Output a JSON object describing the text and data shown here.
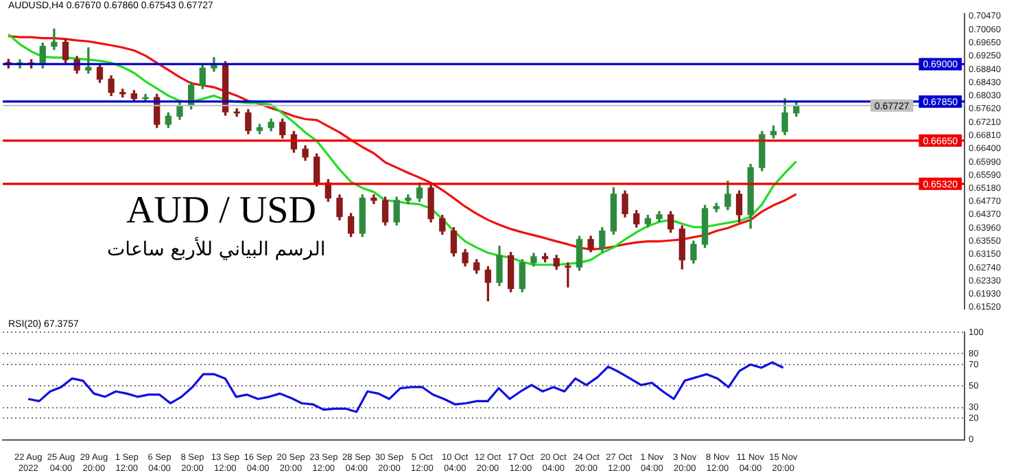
{
  "chart_data": [
    {
      "type": "candlestick",
      "title": "AUDUSD,H4  0.67670 0.67860 0.67543 0.67727",
      "annotations": [
        "AUD / USD",
        "الرسم البياني للأربع ساعات"
      ],
      "categories": [
        null,
        null,
        null,
        null,
        null,
        null,
        null,
        null,
        null,
        null,
        null,
        null,
        null,
        null,
        null,
        null,
        null,
        null,
        null,
        null,
        null,
        null,
        null,
        null,
        null,
        null,
        null,
        null,
        null,
        null,
        null,
        null,
        null,
        null,
        null,
        null,
        null,
        null,
        null,
        null,
        null,
        null,
        null,
        null,
        null,
        null,
        null,
        null,
        null,
        null,
        null,
        null,
        null,
        null,
        null,
        null,
        null,
        null,
        null,
        null,
        null,
        null,
        null,
        null,
        null,
        null,
        null,
        null,
        null,
        null
      ],
      "ohlc": [
        [
          0.6905,
          0.6915,
          0.6888,
          0.6898
        ],
        [
          0.6898,
          0.6914,
          0.6888,
          0.6904
        ],
        [
          0.6904,
          0.6914,
          0.6888,
          0.6898
        ],
        [
          0.6898,
          0.6965,
          0.6888,
          0.6955
        ],
        [
          0.6955,
          0.7008,
          0.6945,
          0.6967
        ],
        [
          0.6967,
          0.6977,
          0.6904,
          0.6914
        ],
        [
          0.6914,
          0.6924,
          0.6872,
          0.6882
        ],
        [
          0.6882,
          0.695,
          0.6872,
          0.689
        ],
        [
          0.689,
          0.69,
          0.6844,
          0.6854
        ],
        [
          0.6854,
          0.6864,
          0.6803,
          0.6813
        ],
        [
          0.6813,
          0.6823,
          0.6799,
          0.6809
        ],
        [
          0.6809,
          0.6819,
          0.6784,
          0.6794
        ],
        [
          0.6794,
          0.6807,
          0.6784,
          0.6797
        ],
        [
          0.6797,
          0.6807,
          0.6705,
          0.6715
        ],
        [
          0.6715,
          0.675,
          0.6705,
          0.674
        ],
        [
          0.674,
          0.6782,
          0.673,
          0.6772
        ],
        [
          0.6772,
          0.6845,
          0.6762,
          0.6835
        ],
        [
          0.6835,
          0.6898,
          0.6825,
          0.6888
        ],
        [
          0.6888,
          0.692,
          0.6878,
          0.6898
        ],
        [
          0.6898,
          0.6908,
          0.6743,
          0.6753
        ],
        [
          0.6753,
          0.6763,
          0.674,
          0.675
        ],
        [
          0.675,
          0.676,
          0.6686,
          0.6696
        ],
        [
          0.6696,
          0.6715,
          0.6686,
          0.6705
        ],
        [
          0.6705,
          0.6731,
          0.6695,
          0.6721
        ],
        [
          0.6721,
          0.6731,
          0.6673,
          0.6683
        ],
        [
          0.6683,
          0.6693,
          0.6629,
          0.6639
        ],
        [
          0.6639,
          0.6649,
          0.6604,
          0.6614
        ],
        [
          0.6614,
          0.6624,
          0.6525,
          0.6535
        ],
        [
          0.6535,
          0.6545,
          0.6478,
          0.6488
        ],
        [
          0.6488,
          0.6498,
          0.6421,
          0.6431
        ],
        [
          0.6431,
          0.6441,
          0.637,
          0.638
        ],
        [
          0.638,
          0.6498,
          0.637,
          0.6488
        ],
        [
          0.6488,
          0.6498,
          0.6471,
          0.6481
        ],
        [
          0.6481,
          0.6491,
          0.6405,
          0.6415
        ],
        [
          0.6415,
          0.6491,
          0.6405,
          0.6481
        ],
        [
          0.6481,
          0.6498,
          0.6471,
          0.6488
        ],
        [
          0.6488,
          0.6535,
          0.6478,
          0.6519
        ],
        [
          0.6519,
          0.6529,
          0.6415,
          0.6425
        ],
        [
          0.6425,
          0.6435,
          0.6377,
          0.6387
        ],
        [
          0.6387,
          0.6397,
          0.631,
          0.632
        ],
        [
          0.632,
          0.633,
          0.6279,
          0.6289
        ],
        [
          0.6289,
          0.6299,
          0.6257,
          0.6267
        ],
        [
          0.6267,
          0.6277,
          0.6172,
          0.6229
        ],
        [
          0.6229,
          0.634,
          0.6219,
          0.6311
        ],
        [
          0.6311,
          0.6321,
          0.62,
          0.621
        ],
        [
          0.621,
          0.6299,
          0.62,
          0.6289
        ],
        [
          0.6289,
          0.6318,
          0.6279,
          0.6308
        ],
        [
          0.6308,
          0.6318,
          0.6292,
          0.6302
        ],
        [
          0.6302,
          0.6312,
          0.6269,
          0.6279
        ],
        [
          0.6279,
          0.6289,
          0.6215,
          0.6276
        ],
        [
          0.6276,
          0.6371,
          0.6266,
          0.6361
        ],
        [
          0.6361,
          0.6371,
          0.6323,
          0.6333
        ],
        [
          0.6333,
          0.6397,
          0.6323,
          0.6387
        ],
        [
          0.6387,
          0.652,
          0.6377,
          0.65
        ],
        [
          0.65,
          0.651,
          0.643,
          0.644
        ],
        [
          0.644,
          0.645,
          0.6399,
          0.6409
        ],
        [
          0.6409,
          0.6435,
          0.6399,
          0.6425
        ],
        [
          0.6425,
          0.6447,
          0.6415,
          0.6437
        ],
        [
          0.6437,
          0.6447,
          0.6383,
          0.6393
        ],
        [
          0.6393,
          0.6403,
          0.627,
          0.6298
        ],
        [
          0.6298,
          0.6356,
          0.6288,
          0.6346
        ],
        [
          0.6346,
          0.6466,
          0.6336,
          0.6456
        ],
        [
          0.6456,
          0.6472,
          0.6446,
          0.6462
        ],
        [
          0.6462,
          0.654,
          0.6452,
          0.65
        ],
        [
          0.65,
          0.651,
          0.6415,
          0.6437
        ],
        [
          0.6437,
          0.6592,
          0.6395,
          0.6582
        ],
        [
          0.6582,
          0.6693,
          0.6572,
          0.6683
        ],
        [
          0.6683,
          0.671,
          0.6673,
          0.6693
        ],
        [
          0.6693,
          0.6794,
          0.6683,
          0.675
        ],
        [
          0.675,
          0.6786,
          0.674,
          0.67727
        ]
      ],
      "colors": [
        "#8b1a1a",
        "#2e8b3e",
        "#8b1a1a",
        "#2e8b3e",
        "#2e8b3e",
        "#8b1a1a",
        "#8b1a1a",
        "#2e8b3e",
        "#8b1a1a",
        "#8b1a1a",
        "#8b1a1a",
        "#8b1a1a",
        "#2e8b3e",
        "#8b1a1a",
        "#2e8b3e",
        "#2e8b3e",
        "#2e8b3e",
        "#2e8b3e",
        "#2e8b3e",
        "#8b1a1a",
        "#8b1a1a",
        "#8b1a1a",
        "#2e8b3e",
        "#2e8b3e",
        "#8b1a1a",
        "#8b1a1a",
        "#8b1a1a",
        "#8b1a1a",
        "#8b1a1a",
        "#8b1a1a",
        "#8b1a1a",
        "#2e8b3e",
        "#8b1a1a",
        "#8b1a1a",
        "#2e8b3e",
        "#2e8b3e",
        "#2e8b3e",
        "#8b1a1a",
        "#8b1a1a",
        "#8b1a1a",
        "#8b1a1a",
        "#8b1a1a",
        "#8b1a1a",
        "#2e8b3e",
        "#8b1a1a",
        "#2e8b3e",
        "#2e8b3e",
        "#8b1a1a",
        "#8b1a1a",
        "#8b1a1a",
        "#2e8b3e",
        "#8b1a1a",
        "#2e8b3e",
        "#2e8b3e",
        "#8b1a1a",
        "#8b1a1a",
        "#2e8b3e",
        "#2e8b3e",
        "#8b1a1a",
        "#8b1a1a",
        "#2e8b3e",
        "#2e8b3e",
        "#2e8b3e",
        "#2e8b3e",
        "#8b1a1a",
        "#2e8b3e",
        "#2e8b3e",
        "#2e8b3e",
        "#2e8b3e",
        "#2e8b3e"
      ],
      "series": [
        {
          "type": "line",
          "color": "#22dd22",
          "values": [
            0.6992,
            0.6961,
            0.6939,
            0.6923,
            0.692,
            0.692,
            0.6917,
            0.6914,
            0.691,
            0.6904,
            0.6891,
            0.6873,
            0.6847,
            0.6825,
            0.6803,
            0.6787,
            0.6784,
            0.6793,
            0.6803,
            0.679,
            0.6784,
            0.6781,
            0.6781,
            0.6775,
            0.6749,
            0.6721,
            0.669,
            0.6664,
            0.662,
            0.6576,
            0.6538,
            0.6519,
            0.6507,
            0.6481,
            0.6478,
            0.6472,
            0.6469,
            0.6456,
            0.6424,
            0.6387,
            0.6355,
            0.6336,
            0.632,
            0.6311,
            0.6305,
            0.6292,
            0.6283,
            0.6283,
            0.6283,
            0.6286,
            0.6289,
            0.6298,
            0.632,
            0.6336,
            0.6361,
            0.6383,
            0.6402,
            0.6415,
            0.6421,
            0.6409,
            0.6399,
            0.6399,
            0.6406,
            0.6412,
            0.6418,
            0.6431,
            0.6469,
            0.6526,
            0.6565,
            0.6601
          ]
        },
        {
          "type": "line",
          "color": "#ee1111",
          "values": [
            0.6986,
            0.6983,
            0.6983,
            0.698,
            0.698,
            0.6977,
            0.6973,
            0.697,
            0.6964,
            0.6958,
            0.6951,
            0.6942,
            0.6926,
            0.6904,
            0.6882,
            0.686,
            0.6841,
            0.6835,
            0.6829,
            0.6816,
            0.6803,
            0.6787,
            0.6778,
            0.6765,
            0.6753,
            0.674,
            0.6731,
            0.6728,
            0.6709,
            0.669,
            0.6667,
            0.6645,
            0.6626,
            0.6598,
            0.6582,
            0.6566,
            0.6551,
            0.6535,
            0.6513,
            0.6488,
            0.6462,
            0.644,
            0.6421,
            0.6406,
            0.6393,
            0.6383,
            0.6374,
            0.6365,
            0.6355,
            0.6346,
            0.6336,
            0.633,
            0.6333,
            0.6339,
            0.6346,
            0.6352,
            0.6355,
            0.6355,
            0.6358,
            0.6361,
            0.6368,
            0.6374,
            0.6387,
            0.6396,
            0.6409,
            0.6421,
            0.6447,
            0.6466,
            0.6481,
            0.65
          ]
        }
      ],
      "ylim": [
        0.6147,
        0.7055
      ],
      "yticks": [
        {
          "value": 0.7047,
          "label": "0.70470"
        },
        {
          "value": 0.7006,
          "label": "0.70060"
        },
        {
          "value": 0.6965,
          "label": "0.69650"
        },
        {
          "value": 0.6925,
          "label": "0.69250"
        },
        {
          "value": 0.6884,
          "label": "0.68840"
        },
        {
          "value": 0.6843,
          "label": "0.68430"
        },
        {
          "value": 0.6803,
          "label": "0.68030"
        },
        {
          "value": 0.6762,
          "label": "0.67620"
        },
        {
          "value": 0.6721,
          "label": "0.67210"
        },
        {
          "value": 0.6681,
          "label": "0.66810"
        },
        {
          "value": 0.664,
          "label": "0.66400"
        },
        {
          "value": 0.6599,
          "label": "0.65990"
        },
        {
          "value": 0.6559,
          "label": "0.65590"
        },
        {
          "value": 0.6518,
          "label": "0.65180"
        },
        {
          "value": 0.6477,
          "label": "0.64770"
        },
        {
          "value": 0.6437,
          "label": "0.64370"
        },
        {
          "value": 0.6396,
          "label": "0.63960"
        },
        {
          "value": 0.6355,
          "label": "0.63550"
        },
        {
          "value": 0.6315,
          "label": "0.63150"
        },
        {
          "value": 0.6274,
          "label": "0.62740"
        },
        {
          "value": 0.6233,
          "label": "0.62330"
        },
        {
          "value": 0.6193,
          "label": "0.61930"
        },
        {
          "value": 0.6152,
          "label": "0.61520"
        }
      ],
      "ref_lines": [
        {
          "axis": "y",
          "value": 0.69,
          "label": "0.69000",
          "color": "#0000cc"
        },
        {
          "axis": "y",
          "value": 0.6785,
          "label": "0.67850",
          "color": "#0000cc"
        },
        {
          "axis": "y",
          "value": 0.67727,
          "label": "0.67727",
          "color": "#c0c0c0"
        },
        {
          "axis": "y",
          "value": 0.6665,
          "label": "0.66650",
          "color": "#ee0000"
        },
        {
          "axis": "y",
          "value": 0.6532,
          "label": "0.65320",
          "color": "#ee0000"
        }
      ],
      "tick_labels": "y"
    },
    {
      "type": "line",
      "title": "RSI(20) 67.3757",
      "categories": [
        "22 Aug 2022",
        null,
        null,
        "25 Aug 04:00",
        null,
        null,
        "29 Aug 20:00",
        null,
        null,
        "1 Sep 12:00",
        null,
        null,
        "6 Sep 04:00",
        null,
        null,
        "8 Sep 20:00",
        null,
        null,
        "13 Sep 12:00",
        null,
        null,
        "16 Sep 04:00",
        null,
        null,
        "20 Sep 20:00",
        null,
        null,
        "23 Sep 12:00",
        null,
        null,
        "28 Sep 04:00",
        null,
        null,
        "30 Sep 20:00",
        null,
        null,
        "5 Oct 12:00",
        null,
        null,
        "10 Oct 04:00",
        null,
        null,
        "12 Oct 20:00",
        null,
        null,
        "17 Oct 12:00",
        null,
        null,
        "20 Oct 04:00",
        null,
        null,
        "24 Oct 20:00",
        null,
        null,
        "27 Oct 12:00",
        null,
        null,
        "1 Nov 04:00",
        null,
        null,
        "3 Nov 20:00",
        null,
        null,
        "8 Nov 12:00",
        null,
        null,
        "11 Nov 04:00",
        null,
        null,
        "15 Nov 20:00"
      ],
      "series": [
        {
          "color": "#1010e0",
          "values": [
            38,
            36,
            45,
            49,
            57,
            55,
            43,
            40,
            45,
            43,
            40,
            42,
            42,
            34,
            40,
            49,
            61,
            61,
            57,
            40,
            42,
            38,
            40,
            43,
            39,
            34,
            33,
            28,
            29,
            29,
            26,
            45,
            43,
            38,
            48,
            49,
            49,
            42,
            38,
            33,
            34,
            36,
            36,
            48,
            38,
            45,
            51,
            45,
            49,
            45,
            57,
            51,
            58,
            68,
            63,
            57,
            51,
            53,
            45,
            38,
            55,
            58,
            61,
            57,
            49,
            64,
            70,
            67,
            72,
            67
          ]
        }
      ],
      "ylim": [
        0,
        100
      ],
      "yticks": [
        0,
        20,
        30,
        50,
        70,
        80,
        100
      ],
      "grid": "y"
    }
  ]
}
